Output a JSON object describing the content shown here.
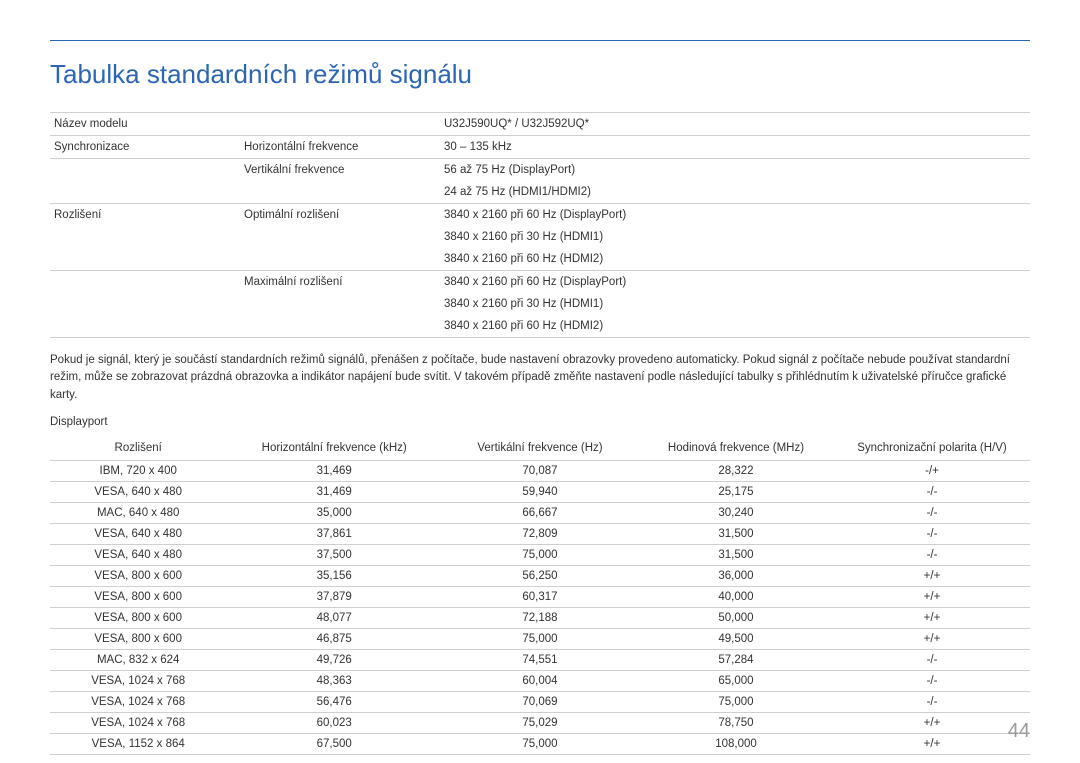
{
  "title": "Tabulka standardních režimů signálu",
  "spec": {
    "model_label": "Název modelu",
    "model_value": "U32J590UQ* / U32J592UQ*",
    "sync_label": "Synchronizace",
    "hfreq_label": "Horizontální frekvence",
    "hfreq_value": "30 – 135 kHz",
    "vfreq_label": "Vertikální frekvence",
    "vfreq_value1": "56 až 75 Hz (DisplayPort)",
    "vfreq_value2": "24 až 75 Hz (HDMI1/HDMI2)",
    "res_label": "Rozlišení",
    "opt_label": "Optimální rozlišení",
    "opt_value1": "3840 x 2160 při 60 Hz (DisplayPort)",
    "opt_value2": "3840 x 2160 při 30 Hz (HDMI1)",
    "opt_value3": "3840 x 2160 při 60 Hz (HDMI2)",
    "max_label": "Maximální rozlišení",
    "max_value1": "3840 x 2160 při 60 Hz (DisplayPort)",
    "max_value2": "3840 x 2160 při 30 Hz (HDMI1)",
    "max_value3": "3840 x 2160 při 60 Hz (HDMI2)"
  },
  "paragraph": "Pokud je signál, který je součástí standardních režimů signálů, přenášen z počítače, bude nastavení obrazovky provedeno automaticky. Pokud signál z počítače nebude používat standardní režim, může se zobrazovat prázdná obrazovka a indikátor napájení bude svítit. V takovém případě změňte nastavení podle následující tabulky s přihlédnutím k uživatelské příručce grafické karty.",
  "section_label": "Displayport",
  "columns": {
    "c1": "Rozlišení",
    "c2": "Horizontální frekvence (kHz)",
    "c3": "Vertikální frekvence (Hz)",
    "c4": "Hodinová frekvence (MHz)",
    "c5": "Synchronizační polarita (H/V)"
  },
  "rows": [
    {
      "c1": "IBM, 720 x 400",
      "c2": "31,469",
      "c3": "70,087",
      "c4": "28,322",
      "c5": "-/+"
    },
    {
      "c1": "VESA, 640 x 480",
      "c2": "31,469",
      "c3": "59,940",
      "c4": "25,175",
      "c5": "-/-"
    },
    {
      "c1": "MAC, 640 x 480",
      "c2": "35,000",
      "c3": "66,667",
      "c4": "30,240",
      "c5": "-/-"
    },
    {
      "c1": "VESA, 640 x 480",
      "c2": "37,861",
      "c3": "72,809",
      "c4": "31,500",
      "c5": "-/-"
    },
    {
      "c1": "VESA, 640 x 480",
      "c2": "37,500",
      "c3": "75,000",
      "c4": "31,500",
      "c5": "-/-"
    },
    {
      "c1": "VESA, 800 x 600",
      "c2": "35,156",
      "c3": "56,250",
      "c4": "36,000",
      "c5": "+/+"
    },
    {
      "c1": "VESA, 800 x 600",
      "c2": "37,879",
      "c3": "60,317",
      "c4": "40,000",
      "c5": "+/+"
    },
    {
      "c1": "VESA, 800 x 600",
      "c2": "48,077",
      "c3": "72,188",
      "c4": "50,000",
      "c5": "+/+"
    },
    {
      "c1": "VESA, 800 x 600",
      "c2": "46,875",
      "c3": "75,000",
      "c4": "49,500",
      "c5": "+/+"
    },
    {
      "c1": "MAC, 832 x 624",
      "c2": "49,726",
      "c3": "74,551",
      "c4": "57,284",
      "c5": "-/-"
    },
    {
      "c1": "VESA, 1024 x 768",
      "c2": "48,363",
      "c3": "60,004",
      "c4": "65,000",
      "c5": "-/-"
    },
    {
      "c1": "VESA, 1024 x 768",
      "c2": "56,476",
      "c3": "70,069",
      "c4": "75,000",
      "c5": "-/-"
    },
    {
      "c1": "VESA, 1024 x 768",
      "c2": "60,023",
      "c3": "75,029",
      "c4": "78,750",
      "c5": "+/+"
    },
    {
      "c1": "VESA, 1152 x 864",
      "c2": "67,500",
      "c3": "75,000",
      "c4": "108,000",
      "c5": "+/+"
    }
  ],
  "page_number": "44"
}
